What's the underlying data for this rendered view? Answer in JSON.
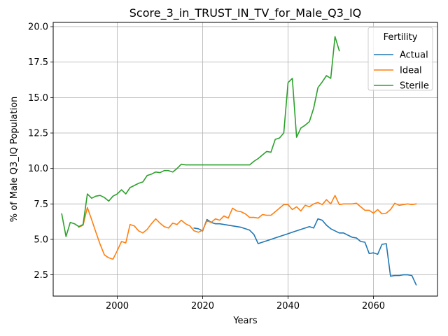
{
  "chart_data": {
    "type": "line",
    "title": "Score_3_in_TRUST_IN_TV_for_Male_Q3_IQ",
    "xlabel": "Years",
    "ylabel": "% of Male Q3_IQ Population",
    "xlim": [
      1985,
      2075
    ],
    "ylim": [
      1.0,
      20.3
    ],
    "xticks": [
      2000,
      2020,
      2040,
      2060
    ],
    "yticks": [
      2.5,
      5.0,
      7.5,
      10.0,
      12.5,
      15.0,
      17.5,
      20.0
    ],
    "xtick_labels": [
      "2000",
      "2020",
      "2040",
      "2060"
    ],
    "ytick_labels": [
      "2.5",
      "5.0",
      "7.5",
      "10.0",
      "12.5",
      "15.0",
      "17.5",
      "20.0"
    ],
    "grid": true,
    "legend": {
      "title": "Fertility",
      "placement": "upper right"
    },
    "series": [
      {
        "name": "Actual",
        "color": "#1f77b4",
        "x": [
          2018,
          2019,
          2020,
          2021,
          2022,
          2023,
          2024,
          2025,
          2026,
          2027,
          2028,
          2029,
          2030,
          2031,
          2032,
          2033,
          2034,
          2035,
          2036,
          2037,
          2038,
          2039,
          2040,
          2041,
          2042,
          2043,
          2044,
          2045,
          2046,
          2047,
          2048,
          2049,
          2050,
          2051,
          2052,
          2053,
          2054,
          2055,
          2056,
          2057,
          2058,
          2059,
          2060,
          2061,
          2062,
          2063,
          2064,
          2065,
          2066,
          2067,
          2068,
          2069,
          2070
        ],
        "y": [
          5.8,
          5.75,
          5.6,
          6.4,
          6.2,
          6.1,
          6.1,
          6.05,
          6.0,
          5.95,
          5.9,
          5.85,
          5.75,
          5.65,
          5.35,
          4.7,
          4.8,
          4.9,
          5.0,
          5.1,
          5.2,
          5.3,
          5.4,
          5.5,
          5.6,
          5.7,
          5.8,
          5.9,
          5.8,
          6.45,
          6.35,
          6.0,
          5.75,
          5.6,
          5.45,
          5.45,
          5.3,
          5.15,
          5.1,
          4.85,
          4.8,
          4.0,
          4.05,
          3.95,
          4.65,
          4.7,
          2.4,
          2.45,
          2.45,
          2.5,
          2.5,
          2.45,
          1.8
        ]
      },
      {
        "name": "Ideal",
        "color": "#ff7f0e",
        "x": [
          1991,
          1992,
          1993,
          1994,
          1995,
          1996,
          1997,
          1998,
          1999,
          2000,
          2001,
          2002,
          2003,
          2004,
          2005,
          2006,
          2007,
          2008,
          2009,
          2010,
          2011,
          2012,
          2013,
          2014,
          2015,
          2016,
          2017,
          2018,
          2019,
          2020,
          2021,
          2022,
          2023,
          2024,
          2025,
          2026,
          2027,
          2028,
          2029,
          2030,
          2031,
          2032,
          2033,
          2034,
          2035,
          2036,
          2037,
          2038,
          2039,
          2040,
          2041,
          2042,
          2043,
          2044,
          2045,
          2046,
          2047,
          2048,
          2049,
          2050,
          2051,
          2052,
          2053,
          2054,
          2055,
          2056,
          2057,
          2058,
          2059,
          2060,
          2061,
          2062,
          2063,
          2064,
          2065,
          2066,
          2067,
          2068,
          2069,
          2070
        ],
        "y": [
          5.85,
          6.0,
          7.25,
          6.4,
          5.5,
          4.65,
          3.9,
          3.7,
          3.6,
          4.2,
          4.85,
          4.75,
          6.05,
          5.95,
          5.6,
          5.45,
          5.7,
          6.1,
          6.45,
          6.15,
          5.9,
          5.8,
          6.15,
          6.05,
          6.35,
          6.1,
          5.95,
          5.6,
          5.5,
          5.65,
          6.3,
          6.2,
          6.45,
          6.35,
          6.65,
          6.5,
          7.2,
          7.0,
          6.95,
          6.8,
          6.55,
          6.55,
          6.5,
          6.75,
          6.7,
          6.7,
          6.95,
          7.2,
          7.45,
          7.45,
          7.1,
          7.3,
          7.0,
          7.4,
          7.3,
          7.5,
          7.6,
          7.45,
          7.8,
          7.5,
          8.1,
          7.45,
          7.5,
          7.5,
          7.5,
          7.55,
          7.3,
          7.05,
          7.05,
          6.85,
          7.1,
          6.8,
          6.85,
          7.1,
          7.55,
          7.4,
          7.45,
          7.5,
          7.45,
          7.5
        ]
      },
      {
        "name": "Sterile",
        "color": "#2ca02c",
        "x": [
          1987,
          1988,
          1989,
          1990,
          1991,
          1992,
          1993,
          1994,
          1995,
          1996,
          1997,
          1998,
          1999,
          2000,
          2001,
          2002,
          2003,
          2004,
          2005,
          2006,
          2007,
          2008,
          2009,
          2010,
          2011,
          2012,
          2013,
          2014,
          2015,
          2016,
          2017,
          2018,
          2019,
          2020,
          2021,
          2022,
          2023,
          2024,
          2025,
          2026,
          2027,
          2028,
          2029,
          2030,
          2031,
          2032,
          2033,
          2034,
          2035,
          2036,
          2037,
          2038,
          2039,
          2040,
          2041,
          2042,
          2043,
          2044,
          2045,
          2046,
          2047,
          2048,
          2049,
          2050,
          2051,
          2052
        ],
        "y": [
          6.8,
          5.2,
          6.2,
          6.1,
          5.9,
          6.05,
          8.2,
          7.9,
          8.05,
          8.1,
          7.95,
          7.7,
          8.05,
          8.2,
          8.5,
          8.2,
          8.65,
          8.8,
          8.95,
          9.05,
          9.5,
          9.6,
          9.75,
          9.7,
          9.85,
          9.85,
          9.75,
          10.0,
          10.3,
          10.25,
          10.25,
          10.25,
          10.25,
          10.25,
          10.25,
          10.25,
          10.25,
          10.25,
          10.25,
          10.25,
          10.25,
          10.25,
          10.25,
          10.25,
          10.25,
          10.5,
          10.7,
          10.95,
          11.2,
          11.15,
          12.05,
          12.15,
          12.5,
          16.05,
          16.35,
          12.2,
          12.85,
          13.05,
          13.3,
          14.25,
          15.7,
          16.1,
          16.55,
          16.35,
          19.3,
          18.3
        ]
      }
    ]
  }
}
